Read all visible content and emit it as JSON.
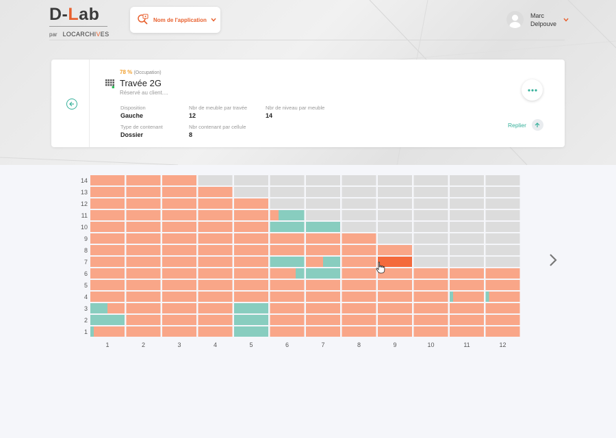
{
  "header": {
    "logo_prefix": "D-",
    "logo_accent": "L",
    "logo_suffix": "ab",
    "logo_by": "par",
    "logo_brand_main": "LOCARCHI",
    "logo_brand_accent": "V",
    "logo_brand_end": "ES",
    "app_button_label": "Nom de l'application",
    "app_button_icon": "search-location-icon",
    "user_first": "Marc",
    "user_last": "Delpouve",
    "user_menu_icon": "chevron-down-icon"
  },
  "card": {
    "occupation_pct": "78 %",
    "occupation_label": "(Occupation)",
    "title": "Travée 2G",
    "subtitle": "Réservé au client....",
    "props": [
      {
        "label": "Disposition",
        "value": "Gauche"
      },
      {
        "label": "Nbr de meuble par travée",
        "value": "12"
      },
      {
        "label": "Nbr de niveau par meuble",
        "value": "14"
      },
      {
        "label": "Type de contenant",
        "value": "Dossier"
      },
      {
        "label": "Nbr contenant par cellule",
        "value": "8"
      }
    ],
    "more_icon": "more-horizontal-icon",
    "fold_label": "Replier",
    "fold_icon": "arrow-up-icon",
    "back_icon": "arrow-left-circle-icon"
  },
  "colors": {
    "occupied": "#f9a688",
    "free": "#dcdcdc",
    "reserved": "#88cdbf",
    "selected": "#f46a3c",
    "accent": "#35b09a",
    "brand": "#e8612f"
  },
  "matrix": {
    "columns": [
      "1",
      "2",
      "3",
      "4",
      "5",
      "6",
      "7",
      "8",
      "9",
      "10",
      "11",
      "12"
    ],
    "levels": [
      "1",
      "2",
      "3",
      "4",
      "5",
      "6",
      "7",
      "8",
      "9",
      "10",
      "11",
      "12",
      "13",
      "14"
    ],
    "selected": {
      "column": "9",
      "level": "7"
    },
    "cells": [
      {
        "level": 14,
        "states": [
          "O",
          "O",
          "O",
          "F",
          "F",
          "F",
          "F",
          "F",
          "F",
          "F",
          "F",
          "F"
        ]
      },
      {
        "level": 13,
        "states": [
          "O",
          "O",
          "O",
          "O",
          "F",
          "F",
          "F",
          "F",
          "F",
          "F",
          "F",
          "F"
        ]
      },
      {
        "level": 12,
        "states": [
          "O",
          "O",
          "O",
          "O",
          "O",
          "F",
          "F",
          "F",
          "F",
          "F",
          "F",
          "F"
        ]
      },
      {
        "level": 11,
        "states": [
          "O",
          "O",
          "O",
          "O",
          "O",
          "M:0.25",
          "F",
          "F",
          "F",
          "F",
          "F",
          "F"
        ]
      },
      {
        "level": 10,
        "states": [
          "O",
          "O",
          "O",
          "O",
          "O",
          "R",
          "R",
          "F",
          "F",
          "F",
          "F",
          "F"
        ]
      },
      {
        "level": 9,
        "states": [
          "O",
          "O",
          "O",
          "O",
          "O",
          "O",
          "O",
          "O",
          "F",
          "F",
          "F",
          "F"
        ]
      },
      {
        "level": 8,
        "states": [
          "O",
          "O",
          "O",
          "O",
          "O",
          "O",
          "O",
          "O",
          "O",
          "F",
          "F",
          "F"
        ]
      },
      {
        "level": 7,
        "states": [
          "O",
          "O",
          "O",
          "O",
          "O",
          "R",
          "M:0.5",
          "O",
          "S",
          "F",
          "F",
          "F"
        ]
      },
      {
        "level": 6,
        "states": [
          "O",
          "O",
          "O",
          "O",
          "O",
          "M:0.75",
          "R",
          "O",
          "O",
          "O",
          "O",
          "O"
        ]
      },
      {
        "level": 5,
        "states": [
          "O",
          "O",
          "O",
          "O",
          "O",
          "O",
          "O",
          "O",
          "O",
          "O",
          "O",
          "O"
        ]
      },
      {
        "level": 4,
        "states": [
          "O",
          "O",
          "O",
          "O",
          "O",
          "O",
          "O",
          "O",
          "O",
          "O",
          "N",
          "N"
        ]
      },
      {
        "level": 3,
        "states": [
          "R:0.5",
          "O",
          "O",
          "O",
          "R",
          "O",
          "O",
          "O",
          "O",
          "O",
          "O",
          "O"
        ]
      },
      {
        "level": 2,
        "states": [
          "R",
          "O",
          "O",
          "O",
          "R",
          "O",
          "O",
          "O",
          "O",
          "O",
          "O",
          "O"
        ]
      },
      {
        "level": 1,
        "states": [
          "N",
          "O",
          "O",
          "O",
          "R",
          "O",
          "O",
          "O",
          "O",
          "O",
          "O",
          "O"
        ]
      }
    ],
    "next_icon": "chevron-right-icon",
    "cursor_icon": "hand-pointer-icon"
  }
}
